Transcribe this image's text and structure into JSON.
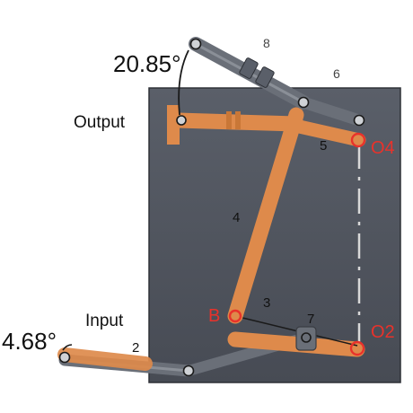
{
  "labels": {
    "output_angle": "20.85°",
    "output": "Output",
    "input_angle": "4.68°",
    "input": "Input",
    "link_2": "2",
    "link_3": "3",
    "link_4": "4",
    "link_5": "5",
    "link_6": "6",
    "link_7": "7",
    "link_8": "8",
    "pivot_b": "B",
    "pivot_o2": "O2",
    "pivot_o4": "O4"
  },
  "colors": {
    "ground_plate": "#4f545e",
    "orange_link": "#de8a4b",
    "grey_link": "#6a6f78",
    "pivot_red": "#e8322b"
  }
}
